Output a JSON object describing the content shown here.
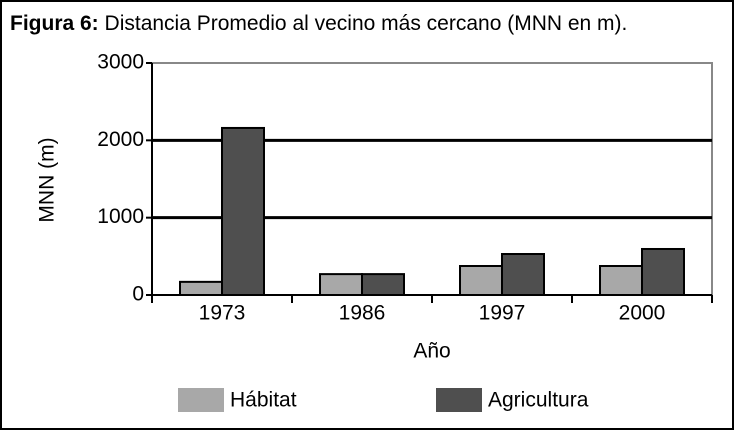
{
  "chart_data": {
    "type": "bar",
    "title_label": "Figura 6:",
    "title": "Distancia Promedio al vecino más cercano (MNN en m).",
    "y_label": "MNN (m)",
    "x_label": "Año",
    "categories": [
      "1973",
      "1986",
      "1997",
      "2000"
    ],
    "series": [
      {
        "name": "Hábitat",
        "color": "#a8a8a8",
        "values": [
          170,
          270,
          375,
          375
        ]
      },
      {
        "name": "Agricultura",
        "color": "#4f4f4f",
        "values": [
          2160,
          270,
          530,
          595
        ]
      }
    ],
    "ylim": [
      0,
      3000
    ],
    "yticks": [
      0,
      1000,
      2000,
      3000
    ],
    "grid": true
  }
}
